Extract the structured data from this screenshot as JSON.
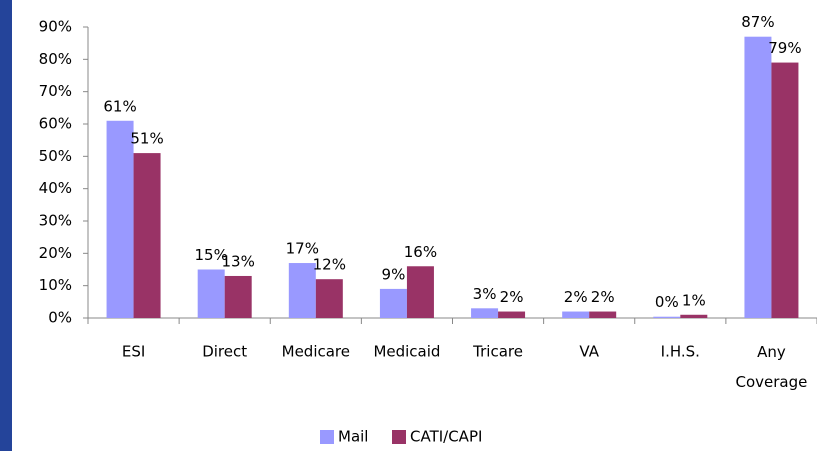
{
  "chart_data": {
    "type": "bar",
    "categories": [
      "ESI",
      "Direct",
      "Medicare",
      "Medicaid",
      "Tricare",
      "VA",
      "I.H.S.",
      "Any Coverage"
    ],
    "series": [
      {
        "name": "Mail",
        "color": "#9999ff",
        "values": [
          61,
          15,
          17,
          9,
          3,
          2,
          0.4,
          87
        ],
        "value_labels": [
          "61%",
          "15%",
          "17%",
          "9%",
          "3%",
          "2%",
          "0%",
          "87%"
        ]
      },
      {
        "name": "CATI/CAPI",
        "color": "#993366",
        "values": [
          51,
          13,
          12,
          16,
          2,
          2,
          1,
          79
        ],
        "value_labels": [
          "51%",
          "13%",
          "12%",
          "16%",
          "2%",
          "2%",
          "1%",
          "79%"
        ]
      }
    ],
    "ylim": [
      0,
      90
    ],
    "yticks": [
      {
        "value": 0,
        "label": "0%"
      },
      {
        "value": 10,
        "label": "10%"
      },
      {
        "value": 20,
        "label": "20%"
      },
      {
        "value": 30,
        "label": "30%"
      },
      {
        "value": 40,
        "label": "40%"
      },
      {
        "value": 50,
        "label": "50%"
      },
      {
        "value": 60,
        "label": "60%"
      },
      {
        "value": 70,
        "label": "70%"
      },
      {
        "value": 80,
        "label": "80%"
      },
      {
        "value": 90,
        "label": "90%"
      }
    ],
    "legend": "bottom"
  }
}
